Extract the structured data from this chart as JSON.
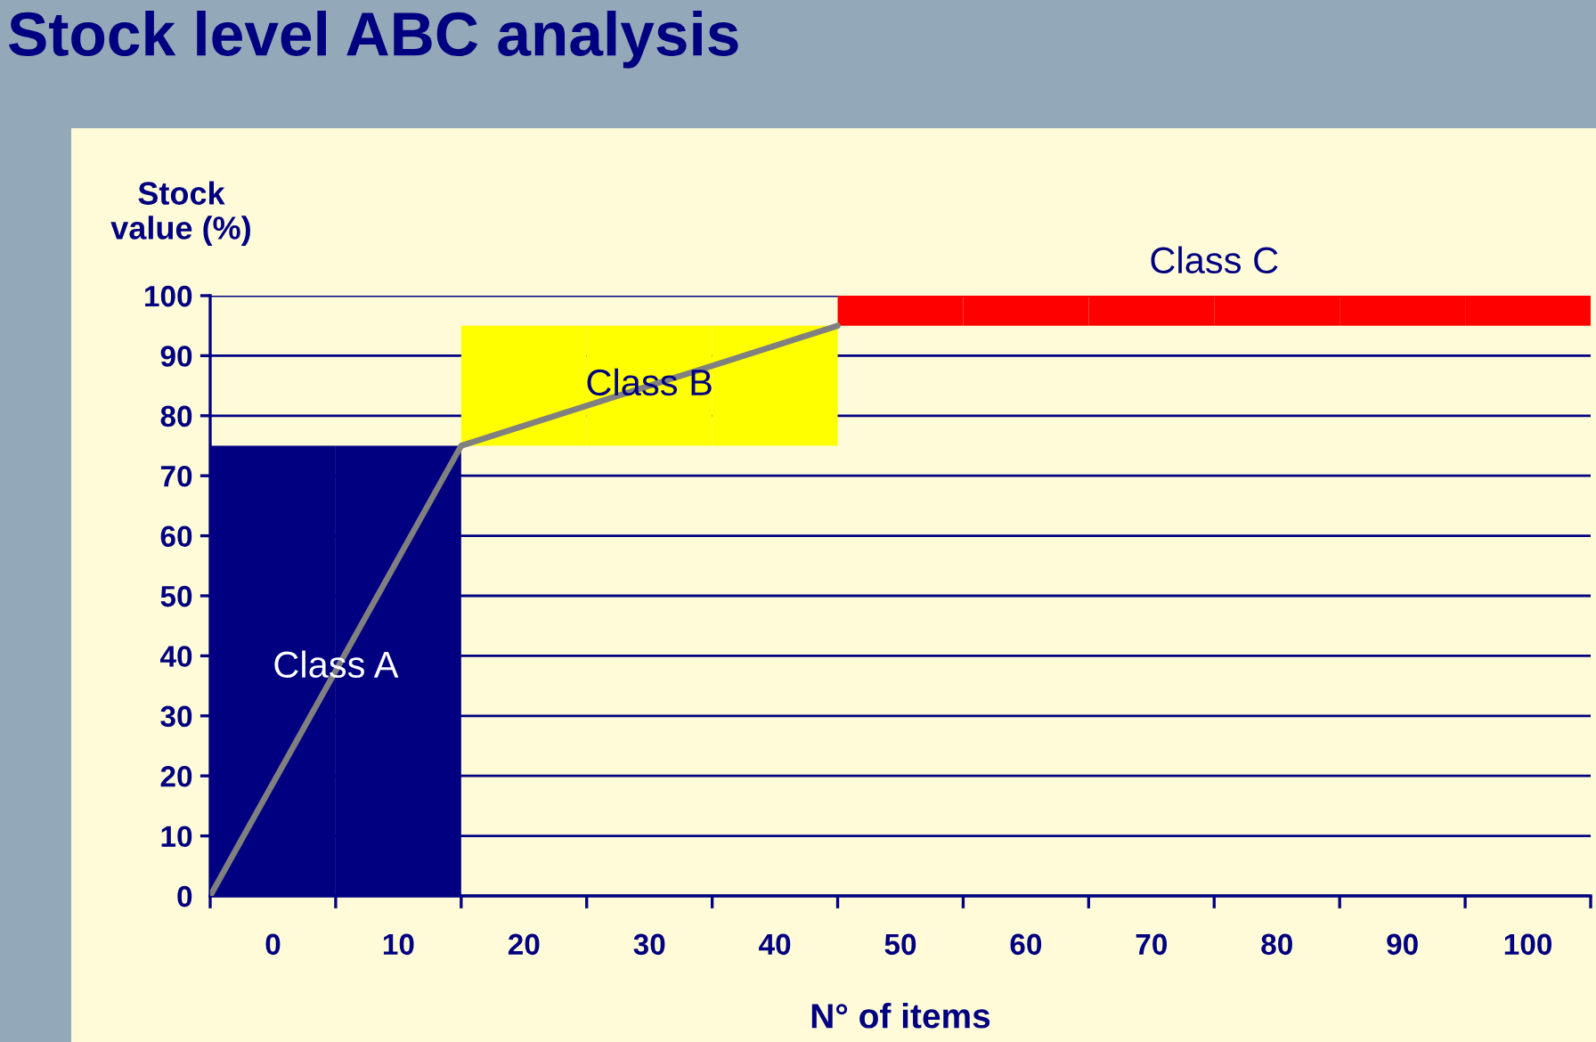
{
  "chart_data": {
    "type": "bar",
    "title": "Stock level ABC analysis",
    "xlabel": "N° of items",
    "ylabel": "Stock\nvalue (%)",
    "x": [
      0,
      10,
      20,
      30,
      40,
      50,
      60,
      70,
      80,
      90,
      100
    ],
    "values": [
      75,
      75,
      20,
      20,
      20,
      5,
      5,
      5,
      5,
      5,
      5
    ],
    "base": [
      0,
      0,
      75,
      75,
      75,
      95,
      95,
      95,
      95,
      95,
      95
    ],
    "colors": [
      "#000080",
      "#000080",
      "#ffff00",
      "#ffff00",
      "#ffff00",
      "#ff0000",
      "#ff0000",
      "#ff0000",
      "#ff0000",
      "#ff0000",
      "#ff0000"
    ],
    "series": [
      {
        "type": "line",
        "color": "#808080",
        "x": [
          -5,
          15,
          45
        ],
        "values": [
          0,
          75,
          95
        ]
      }
    ],
    "xlim": [
      -5,
      105
    ],
    "xticks": [
      {
        "value": -5,
        "label": null
      },
      0,
      {
        "value": 5,
        "label": null
      },
      10,
      {
        "value": 15,
        "label": null
      },
      20,
      {
        "value": 25,
        "label": null
      },
      30,
      {
        "value": 35,
        "label": null
      },
      40,
      {
        "value": 45,
        "label": null
      },
      50,
      {
        "value": 55,
        "label": null
      },
      60,
      {
        "value": 65,
        "label": null
      },
      70,
      {
        "value": 75,
        "label": null
      },
      80,
      {
        "value": 85,
        "label": null
      },
      90,
      {
        "value": 95,
        "label": null
      },
      100,
      {
        "value": 105,
        "label": null
      }
    ],
    "ylim": [
      0,
      100
    ],
    "yticks": [
      0,
      10,
      20,
      30,
      40,
      50,
      60,
      70,
      80,
      90,
      100
    ],
    "grid": "y",
    "annotations": [
      {
        "text": "Class A",
        "x": 5,
        "y": 38
      },
      {
        "text": "Class B",
        "x": 30,
        "y": 85
      },
      {
        "text": "Class C",
        "x": 75,
        "y": 100
      }
    ]
  }
}
